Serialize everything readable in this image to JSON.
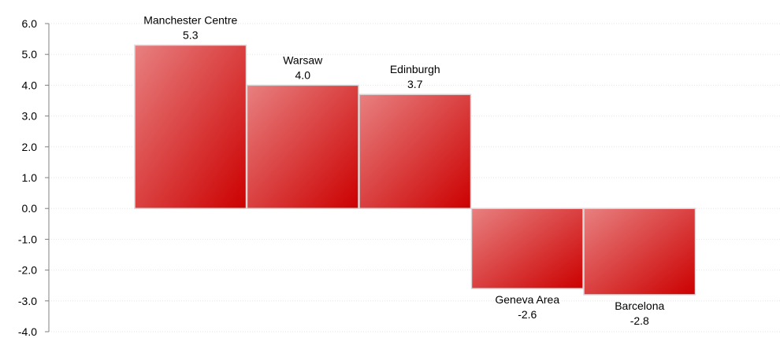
{
  "chart_data": {
    "type": "bar",
    "categories": [
      "Manchester Centre",
      "Warsaw",
      "Edinburgh",
      "Geneva Area",
      "Barcelona"
    ],
    "values": [
      5.3,
      4.0,
      3.7,
      -2.6,
      -2.8
    ],
    "value_labels": [
      "5.3",
      "4.0",
      "3.7",
      "-2.6",
      "-2.8"
    ],
    "y_ticks": [
      "6.0",
      "5.0",
      "4.0",
      "3.0",
      "2.0",
      "1.0",
      "0.0",
      "-1.0",
      "-2.0",
      "-3.0",
      "-4.0"
    ],
    "title": "",
    "xlabel": "",
    "ylabel": "",
    "ylim": [
      -4,
      6
    ],
    "grid": true,
    "legend": "none",
    "colors": {
      "bar_light": "#e88080",
      "bar_dark": "#cc0000",
      "bar_border": "#d9d9d9",
      "grid": "#e6e6e6",
      "axis": "#808080"
    }
  }
}
